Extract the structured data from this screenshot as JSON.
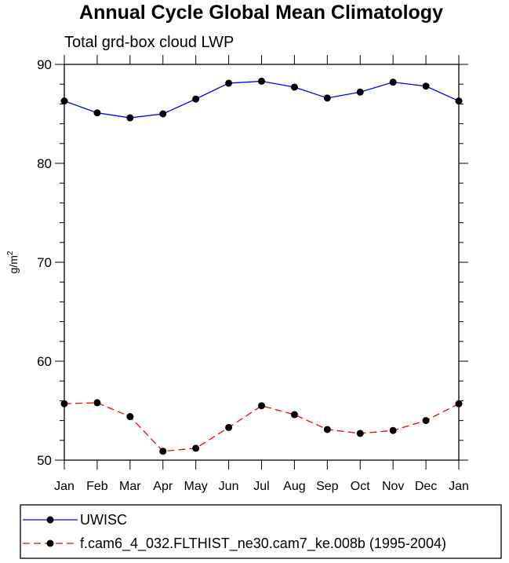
{
  "chart_data": {
    "type": "line",
    "title": "Annual Cycle Global Mean Climatology",
    "subtitle": "Total grd-box cloud LWP",
    "xlabel": "",
    "ylabel": "g/m",
    "ylabel_sup": "2",
    "categories": [
      "Jan",
      "Feb",
      "Mar",
      "Apr",
      "May",
      "Jun",
      "Jul",
      "Aug",
      "Sep",
      "Oct",
      "Nov",
      "Dec",
      "Jan"
    ],
    "ylim": [
      50,
      90
    ],
    "yticks": [
      50,
      60,
      70,
      80,
      90
    ],
    "grid": false,
    "legend_position": "bottom",
    "series": [
      {
        "name": "UWISC",
        "color": "#0000ff",
        "dash": "solid",
        "marker": "filled-circle",
        "values": [
          86.3,
          85.1,
          84.6,
          85.0,
          86.5,
          88.1,
          88.3,
          87.7,
          86.6,
          87.2,
          88.2,
          87.8,
          86.3
        ]
      },
      {
        "name": "f.cam6_4_032.FLTHIST_ne30.cam7_ke.008b (1995-2004)",
        "color": "#ff0000",
        "dash": "dashed",
        "marker": "filled-circle",
        "values": [
          55.7,
          55.8,
          54.4,
          50.9,
          51.2,
          53.3,
          55.5,
          54.6,
          53.1,
          52.7,
          53.0,
          54.0,
          55.7
        ]
      }
    ]
  }
}
